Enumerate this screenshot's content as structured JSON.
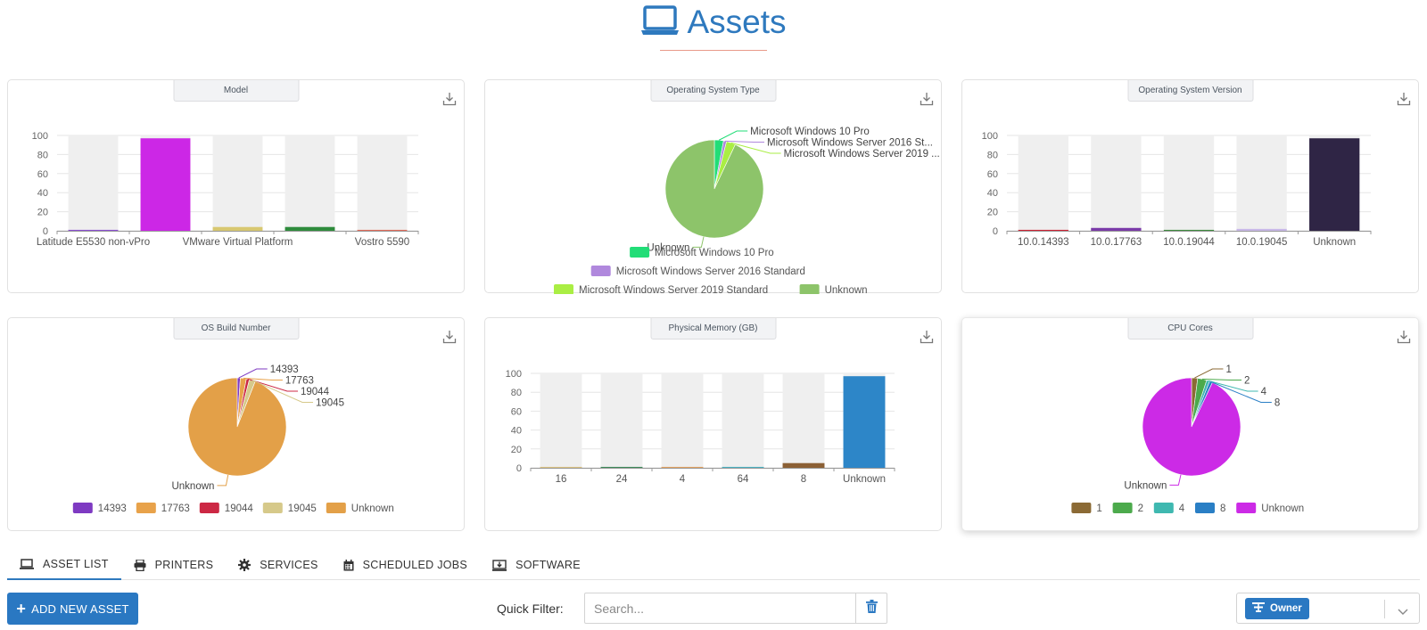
{
  "header": {
    "title": "Assets",
    "icon": "laptop-icon",
    "accent": "#2e79be"
  },
  "charts": [
    {
      "title": "Model",
      "download_icon": "download-icon",
      "chart_data": {
        "type": "bar",
        "categories": [
          "Latitude E5530 non-vPro",
          "",
          "VMware Virtual Platform",
          "",
          "Vostro 5590"
        ],
        "values": [
          1,
          97,
          4,
          4,
          1
        ],
        "colors": [
          "#8a4fd0",
          "#cc27e6",
          "#d8c870",
          "#2e8b3c",
          "#e06a5a"
        ],
        "ylim": [
          0,
          100
        ],
        "yticks": [
          0,
          20,
          40,
          60,
          80,
          100
        ],
        "background_bars": true
      }
    },
    {
      "title": "Operating System Type",
      "download_icon": "download-icon",
      "chart_data": {
        "type": "pie",
        "categories": [
          "Microsoft Windows 10 Pro",
          "Microsoft Windows Server 2016 Standard",
          "Microsoft Windows Server 2019 Standard",
          "Unknown"
        ],
        "slice_labels": [
          "Microsoft Windows 10 Pro",
          "Microsoft Windows Server 2016 St...",
          "Microsoft Windows Server 2019 ...",
          "Unknown"
        ],
        "values": [
          3,
          1,
          3,
          93
        ],
        "colors": [
          "#22dd77",
          "#b088dd",
          "#aaee44",
          "#8dc46a"
        ],
        "legend": "bottom"
      }
    },
    {
      "title": "Operating System Version",
      "download_icon": "download-icon",
      "chart_data": {
        "type": "bar",
        "categories": [
          "10.0.14393",
          "10.0.17763",
          "10.0.19044",
          "10.0.19045",
          "Unknown"
        ],
        "values": [
          1,
          3,
          1,
          2,
          97
        ],
        "colors": [
          "#cc2233",
          "#7a3aa8",
          "#3e8a3e",
          "#c8b8e8",
          "#2f2545"
        ],
        "ylim": [
          0,
          100
        ],
        "yticks": [
          0,
          20,
          40,
          60,
          80,
          100
        ],
        "background_bars": true
      }
    },
    {
      "title": "OS Build Number",
      "download_icon": "download-icon",
      "chart_data": {
        "type": "pie",
        "categories": [
          "14393",
          "17763",
          "19044",
          "19045",
          "Unknown"
        ],
        "values": [
          1,
          2,
          1,
          2,
          94
        ],
        "colors": [
          "#7e3ac2",
          "#e8a24a",
          "#cc2844",
          "#d6c98a",
          "#e3a048"
        ],
        "legend": "bottom"
      }
    },
    {
      "title": "Physical Memory (GB)",
      "download_icon": "download-icon",
      "chart_data": {
        "type": "bar",
        "categories": [
          "16",
          "24",
          "4",
          "64",
          "8",
          "Unknown"
        ],
        "values": [
          1,
          1,
          1,
          1,
          5,
          97
        ],
        "colors": [
          "#d8c080",
          "#3e8a5a",
          "#e0a060",
          "#4ab0c0",
          "#8b6035",
          "#2d86c8"
        ],
        "ylim": [
          0,
          100
        ],
        "yticks": [
          0,
          20,
          40,
          60,
          80,
          100
        ],
        "background_bars": true
      }
    },
    {
      "title": "CPU Cores",
      "download_icon": "download-icon",
      "chart_data": {
        "type": "pie",
        "categories": [
          "1",
          "2",
          "4",
          "8",
          "Unknown"
        ],
        "values": [
          2,
          3,
          1,
          1,
          93
        ],
        "colors": [
          "#8b6a35",
          "#4caa4c",
          "#3fb8b0",
          "#2a7fc5",
          "#cc2ae6"
        ],
        "legend": "bottom"
      }
    }
  ],
  "tabs": [
    {
      "label": "ASSET LIST",
      "icon": "laptop-icon",
      "active": true
    },
    {
      "label": "PRINTERS",
      "icon": "printer-icon",
      "active": false
    },
    {
      "label": "SERVICES",
      "icon": "gear-icon",
      "active": false
    },
    {
      "label": "SCHEDULED JOBS",
      "icon": "calendar-icon",
      "active": false
    },
    {
      "label": "SOFTWARE",
      "icon": "software-download-icon",
      "active": false
    }
  ],
  "toolbar": {
    "add_label": "ADD NEW ASSET",
    "quick_filter_label": "Quick Filter:",
    "search_placeholder": "Search...",
    "owner_label": "Owner"
  }
}
